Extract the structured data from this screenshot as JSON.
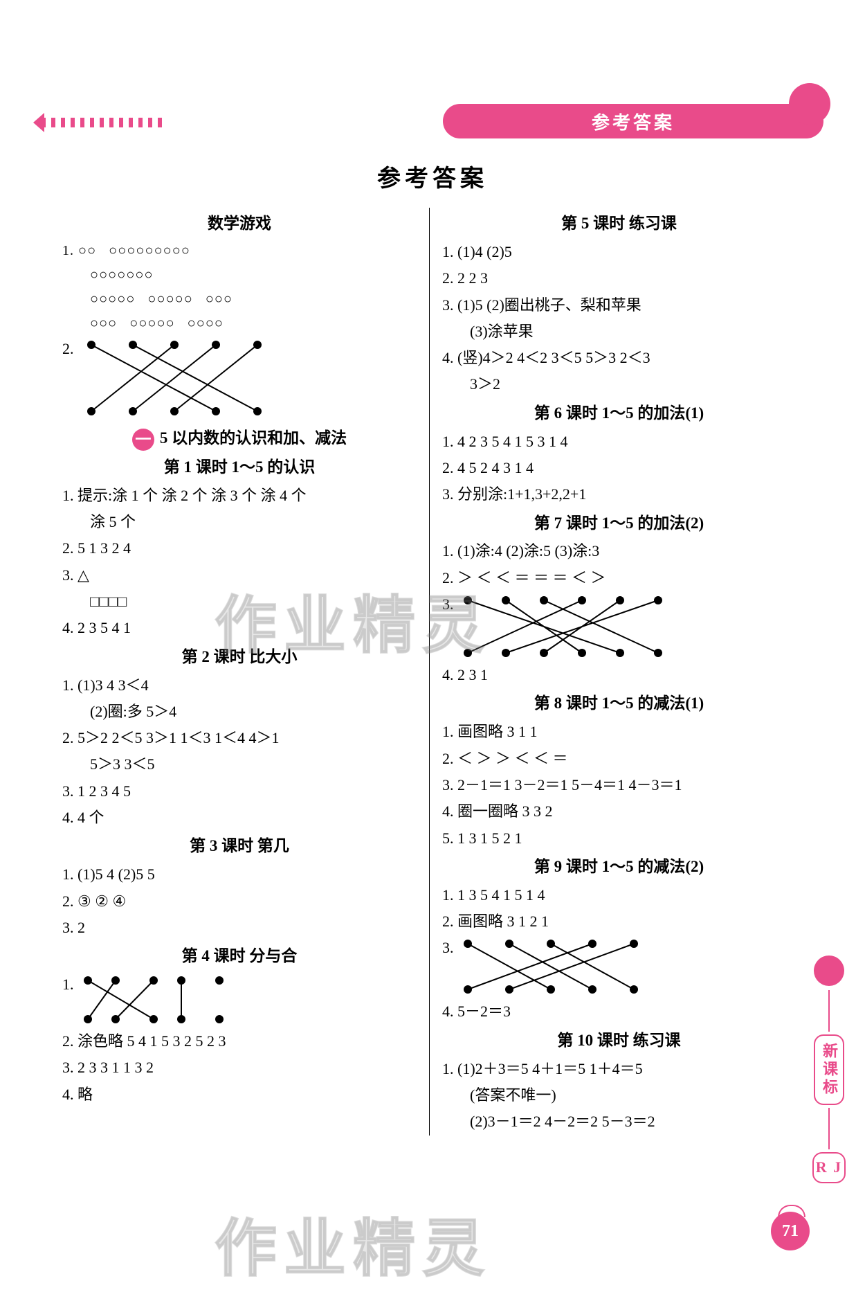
{
  "header_tag": "参考答案",
  "main_heading": "参考答案",
  "page_number": "71",
  "side_label_top": "新课标",
  "side_label_bottom": "R J",
  "watermark": "作业精灵",
  "left": {
    "s0_title": "数学游戏",
    "q1_label": "1.",
    "q1_circles_r1a": "○○",
    "q1_circles_r1b": "○○○○○○○○○",
    "q1_circles_r2": "○○○○○○○",
    "q1_circles_r3a": "○○○○○",
    "q1_circles_r3b": "○○○○○",
    "q1_circles_r3c": "○○○",
    "q1_circles_r4a": "○○○",
    "q1_circles_r4b": "○○○○○",
    "q1_circles_r4c": "○○○○",
    "q2_label": "2.",
    "q2_diagram": {
      "top_x": [
        20,
        80,
        140,
        200,
        260
      ],
      "bot_x": [
        20,
        80,
        140,
        200,
        260
      ],
      "edges": [
        [
          0,
          3
        ],
        [
          1,
          4
        ],
        [
          2,
          0
        ],
        [
          3,
          1
        ],
        [
          4,
          2
        ]
      ],
      "dot_r": 6,
      "stroke": "#000000"
    },
    "unit1_badge": "一",
    "unit1_title": "5 以内数的认识和加、减法",
    "s1_title": "第 1 课时   1～5 的认识",
    "s1_q1": "1. 提示:涂 1 个   涂 2 个   涂 3 个   涂 4 个",
    "s1_q1b": "涂 5 个",
    "s1_q2": "2. 5   1   3   2   4",
    "s1_q3a": "3. △",
    "s1_q3b": "□□□□",
    "s1_q4": "4. 2   3   5   4   1",
    "s2_title": "第 2 课时   比大小",
    "s2_q1a": "1. (1)3   4   3＜4",
    "s2_q1b": "(2)圈:多   5＞4",
    "s2_q2a": "2. 5＞2   2＜5   3＞1   1＜3   1＜4   4＞1",
    "s2_q2b": "5＞3   3＜5",
    "s2_q3": "3. 1   2   3   4   5",
    "s2_q4": "4. 4 个",
    "s3_title": "第 3 课时   第几",
    "s3_q1": "1. (1)5   4   (2)5   5",
    "s3_q2": "2. ③   ②   ④",
    "s3_q3": "3. 2",
    "s4_title": "第 4 课时   分与合",
    "s4_q1_label": "1.",
    "s4_q1_diagram": {
      "top_x": [
        15,
        55,
        110,
        150,
        205
      ],
      "bot_x": [
        15,
        55,
        110,
        150,
        205
      ],
      "edges": [
        [
          0,
          2
        ],
        [
          1,
          0
        ],
        [
          2,
          1
        ],
        [
          3,
          3
        ]
      ],
      "dot_r": 6,
      "stroke": "#000000"
    },
    "s4_q2": "2. 涂色略   5   4   1   5   3   2   5   2   3",
    "s4_q3": "3. 2   3   3   1   1   3   2",
    "s4_q4": "4. 略"
  },
  "right": {
    "s5_title": "第 5 课时   练习课",
    "s5_q1": "1. (1)4   (2)5",
    "s5_q2": "2. 2   2   3",
    "s5_q3a": "3. (1)5   (2)圈出桃子、梨和苹果",
    "s5_q3b": "(3)涂苹果",
    "s5_q4a": "4. (竖)4＞2   4＜2   3＜5   5＞3   2＜3",
    "s5_q4b": "3＞2",
    "s6_title": "第 6 课时   1～5 的加法(1)",
    "s6_q1": "1. 4   2   3   5   4   1   5   3   1   4",
    "s6_q2": "2. 4   5   2   4   3   1   4",
    "s6_q3": "3. 分别涂:1+1,3+2,2+1",
    "s7_title": "第 7 课时   1～5 的加法(2)",
    "s7_q1": "1. (1)涂:4   (2)涂:5   (3)涂:3",
    "s7_q2": "2. ＞   ＜   ＜   ＝   ＝   ＝   ＜   ＞",
    "s7_q3_label": "3.",
    "s7_q3_diagram": {
      "top_x": [
        15,
        70,
        125,
        180,
        235,
        290
      ],
      "bot_x": [
        15,
        70,
        125,
        180,
        235,
        290
      ],
      "edges": [
        [
          0,
          4
        ],
        [
          1,
          3
        ],
        [
          2,
          5
        ],
        [
          3,
          0
        ],
        [
          4,
          2
        ],
        [
          5,
          1
        ]
      ],
      "dot_r": 6,
      "stroke": "#000000"
    },
    "s7_q4": "4. 2   3   1",
    "s8_title": "第 8 课时   1～5 的减法(1)",
    "s8_q1": "1. 画图略   3   1   1",
    "s8_q2": "2. ＜   ＞   ＞   ＜   ＜   ＝",
    "s8_q3": "3. 2－1＝1   3－2＝1   5－4＝1   4－3＝1",
    "s8_q4": "4. 圈一圈略   3   3   2",
    "s8_q5": "5. 1   3   1   5   2   1",
    "s9_title": "第 9 课时   1～5 的减法(2)",
    "s9_q1": "1. 1   3   5   4   1   5   1   4",
    "s9_q2": "2. 画图略   3   1   2   1",
    "s9_q3_label": "3.",
    "s9_q3_diagram": {
      "top_x": [
        15,
        75,
        135,
        195,
        255
      ],
      "bot_x": [
        15,
        75,
        135,
        195,
        255
      ],
      "edges": [
        [
          0,
          2
        ],
        [
          1,
          3
        ],
        [
          2,
          4
        ],
        [
          3,
          0
        ],
        [
          4,
          1
        ]
      ],
      "dot_r": 6,
      "stroke": "#000000"
    },
    "s9_q4": "4. 5－2＝3",
    "s10_title": "第 10 课时   练习课",
    "s10_q1a": "1. (1)2＋3＝5   4＋1＝5   1＋4＝5",
    "s10_q1b": "(答案不唯一)",
    "s10_q1c": "(2)3－1＝2   4－2＝2   5－3＝2"
  }
}
